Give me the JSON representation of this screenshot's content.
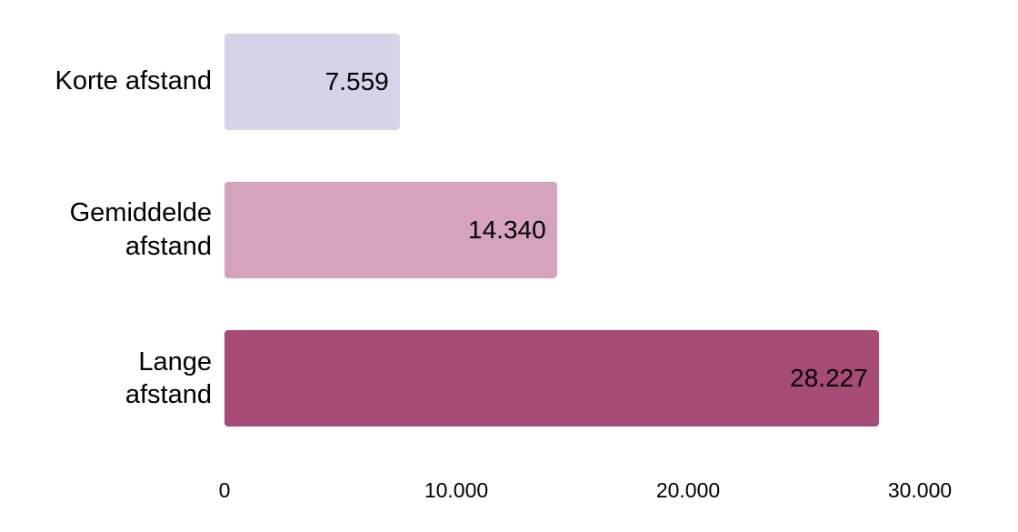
{
  "page": {
    "background_color": "#ffffff",
    "text_color": "#000000"
  },
  "chart_data": {
    "type": "bar",
    "orientation": "horizontal",
    "title": "",
    "xlabel": "",
    "ylabel": "",
    "categories": [
      "Korte afstand",
      "Gemiddelde afstand",
      "Lange afstand"
    ],
    "category_lines": [
      [
        "Korte afstand"
      ],
      [
        "Gemiddelde",
        "afstand"
      ],
      [
        "Lange",
        "afstand"
      ]
    ],
    "values": [
      7559,
      14340,
      28227
    ],
    "value_labels": [
      "7.559",
      "14.340",
      "28.227"
    ],
    "bar_colors": [
      "#d8d2e8",
      "#d5a3bd",
      "#a54b76"
    ],
    "xlim": [
      0,
      30000
    ],
    "x_ticks": [
      0,
      10000,
      20000,
      30000
    ],
    "x_tick_labels": [
      "0",
      "10.000",
      "20.000",
      "30.000"
    ],
    "grid": false,
    "legend": false,
    "value_label_position": "inside-end"
  }
}
